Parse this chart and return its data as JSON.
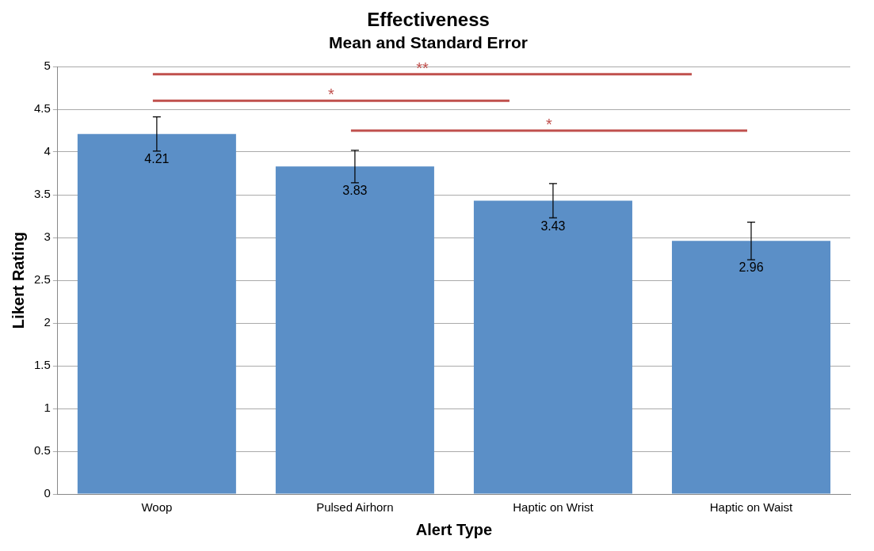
{
  "chart_data": {
    "type": "bar",
    "title": "Effectiveness",
    "subtitle": "Mean and Standard Error",
    "xlabel": "Alert Type",
    "ylabel": "Likert Rating",
    "categories": [
      "Woop",
      "Pulsed Airhorn",
      "Haptic on Wrist",
      "Haptic on Waist"
    ],
    "values": [
      4.21,
      3.83,
      3.43,
      2.96
    ],
    "errors": [
      0.2,
      0.19,
      0.2,
      0.22
    ],
    "color": "#5b8fc7",
    "ylim": [
      0,
      5
    ],
    "yticks": [
      0,
      0.5,
      1,
      1.5,
      2,
      2.5,
      3,
      3.5,
      4,
      4.5,
      5
    ],
    "grid": "y",
    "data_labels": true,
    "annotations": [
      "**",
      "*",
      "*"
    ]
  }
}
